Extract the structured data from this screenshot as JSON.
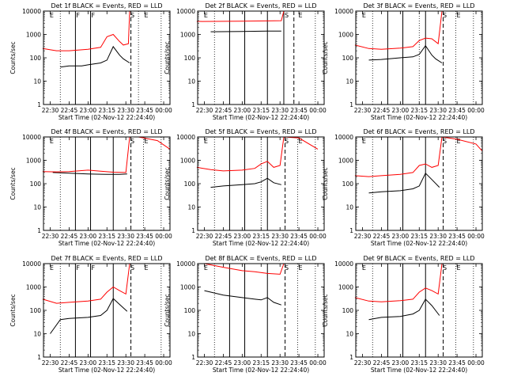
{
  "figure": {
    "background": "#ffffff",
    "events_color": "#000000",
    "lld_color": "#ff0000",
    "xlabel": "Start Time (02-Nov-12 22:24:40)",
    "ylabel": "Counts/sec",
    "x_ticks": [
      "22:30",
      "22:45",
      "23:00",
      "23:15",
      "23:30",
      "23:45",
      "00:00"
    ],
    "y_ticks": [
      "1",
      "10",
      "100",
      "1000",
      "10000"
    ]
  },
  "chart_data": [
    {
      "type": "line",
      "detector": "1f",
      "title": "Det 1f BLACK = Events, RED = LLD",
      "xlabel": "Start Time (02-Nov-12 22:24:40)",
      "ylabel": "Counts/sec",
      "yscale": "log",
      "xlim": [
        "22:24:40",
        "00:05:00"
      ],
      "ylim": [
        1,
        10000
      ],
      "markers": {
        "solid": [
          "22:50",
          "23:02"
        ],
        "dotted": [
          "22:38",
          "23:40",
          "23:58"
        ],
        "dashed": [
          "23:34"
        ],
        "letters": [
          {
            "text": "E",
            "t": "22:29"
          },
          {
            "text": "F",
            "t": "22:50"
          },
          {
            "text": "F",
            "t": "23:02"
          },
          {
            "text": "S",
            "t": "23:33"
          },
          {
            "text": "E",
            "t": "23:44"
          }
        ]
      },
      "series": [
        {
          "name": "Events",
          "color": "#000000",
          "x": [
            "22:38",
            "22:45",
            "22:55",
            "23:00",
            "23:10",
            "23:15",
            "23:20",
            "23:25",
            "23:28",
            "23:33"
          ],
          "values": [
            40,
            45,
            45,
            50,
            60,
            80,
            300,
            130,
            90,
            60
          ]
        },
        {
          "name": "LLD",
          "color": "#ff0000",
          "x": [
            "22:24",
            "22:35",
            "22:45",
            "23:00",
            "23:10",
            "23:15",
            "23:20",
            "23:25",
            "23:28",
            "23:32",
            "23:33"
          ],
          "values": [
            250,
            200,
            200,
            230,
            280,
            800,
            1000,
            500,
            350,
            400,
            10000
          ]
        }
      ]
    },
    {
      "type": "line",
      "detector": "2f",
      "title": "Det 2f BLACK = Events, RED = LLD",
      "xlabel": "Start Time (02-Nov-12 22:24:40)",
      "ylabel": "Counts/sec",
      "yscale": "log",
      "xlim": [
        "22:24:40",
        "00:05:00"
      ],
      "ylim": [
        1,
        10000
      ],
      "markers": {
        "solid": [
          "22:50",
          "23:02",
          "23:20",
          "23:33"
        ],
        "dotted": [
          "22:38",
          "23:58"
        ],
        "dashed": [
          "23:41"
        ],
        "letters": [
          {
            "text": "E",
            "t": "22:29"
          },
          {
            "text": "S",
            "t": "23:33"
          },
          {
            "text": "E",
            "t": "23:44"
          }
        ]
      },
      "series": [
        {
          "name": "Events",
          "color": "#000000",
          "x": [
            "22:35",
            "23:00",
            "23:20",
            "23:31"
          ],
          "values": [
            1300,
            1350,
            1400,
            1400
          ]
        },
        {
          "name": "LLD",
          "color": "#ff0000",
          "x": [
            "22:24",
            "23:00",
            "23:20",
            "23:31",
            "23:33"
          ],
          "values": [
            3600,
            3700,
            3800,
            3900,
            12000
          ]
        }
      ]
    },
    {
      "type": "line",
      "detector": "3f",
      "title": "Det 3f BLACK = Events, RED = LLD",
      "xlabel": "Start Time (02-Nov-12 22:24:40)",
      "ylabel": "Counts/sec",
      "yscale": "log",
      "xlim": [
        "22:24:40",
        "00:05:00"
      ],
      "ylim": [
        1,
        10000
      ],
      "markers": {
        "solid": [
          "22:50",
          "23:02",
          "23:20"
        ],
        "dotted": [
          "22:38",
          "23:15",
          "23:44",
          "23:58"
        ],
        "dashed": [
          "23:34"
        ],
        "letters": [
          {
            "text": "E",
            "t": "22:29"
          },
          {
            "text": "S",
            "t": "23:33"
          },
          {
            "text": "E",
            "t": "23:44"
          }
        ]
      },
      "series": [
        {
          "name": "Events",
          "color": "#000000",
          "x": [
            "22:35",
            "22:45",
            "23:00",
            "23:10",
            "23:15",
            "23:20",
            "23:25",
            "23:28",
            "23:33"
          ],
          "values": [
            80,
            85,
            100,
            110,
            140,
            330,
            130,
            90,
            60
          ]
        },
        {
          "name": "LLD",
          "color": "#ff0000",
          "x": [
            "22:24",
            "22:35",
            "22:45",
            "23:00",
            "23:10",
            "23:15",
            "23:20",
            "23:25",
            "23:30",
            "23:33"
          ],
          "values": [
            350,
            250,
            230,
            260,
            300,
            550,
            700,
            650,
            400,
            10000
          ]
        }
      ]
    },
    {
      "type": "line",
      "detector": "4f",
      "title": "Det 4f BLACK = Events, RED = LLD",
      "xlabel": "Start Time (02-Nov-12 22:24:40)",
      "ylabel": "Counts/sec",
      "yscale": "log",
      "xlim": [
        "22:24:40",
        "00:05:00"
      ],
      "ylim": [
        1,
        10000
      ],
      "markers": {
        "solid": [
          "22:50",
          "23:02",
          "23:20"
        ],
        "dotted": [
          "22:38",
          "23:44",
          "23:58"
        ],
        "dashed": [
          "23:34"
        ],
        "letters": [
          {
            "text": "E",
            "t": "22:29"
          },
          {
            "text": "S",
            "t": "23:33"
          },
          {
            "text": "E",
            "t": "23:44"
          }
        ]
      },
      "series": [
        {
          "name": "Events",
          "color": "#000000",
          "x": [
            "22:32",
            "22:45",
            "23:00",
            "23:15",
            "23:25",
            "23:31"
          ],
          "values": [
            300,
            280,
            260,
            250,
            250,
            260
          ]
        },
        {
          "name": "LLD",
          "color": "#ff0000",
          "x": [
            "22:24",
            "22:35",
            "22:45",
            "23:00",
            "23:10",
            "23:20",
            "23:30",
            "23:33",
            "23:40",
            "23:55",
            "00:05"
          ],
          "values": [
            330,
            320,
            330,
            380,
            340,
            310,
            300,
            10000,
            10000,
            7000,
            3000
          ]
        }
      ]
    },
    {
      "type": "line",
      "detector": "5f",
      "title": "Det 5f BLACK = Events, RED = LLD",
      "xlabel": "Start Time (02-Nov-12 22:24:40)",
      "ylabel": "Counts/sec",
      "yscale": "log",
      "xlim": [
        "22:24:40",
        "00:05:00"
      ],
      "ylim": [
        1,
        10000
      ],
      "markers": {
        "solid": [
          "22:50",
          "23:02",
          "23:20"
        ],
        "dotted": [
          "22:38",
          "23:15",
          "23:44",
          "23:58"
        ],
        "dashed": [
          "23:34"
        ],
        "letters": [
          {
            "text": "E",
            "t": "22:29"
          },
          {
            "text": "S",
            "t": "23:33"
          },
          {
            "text": "E",
            "t": "23:44"
          }
        ]
      },
      "series": [
        {
          "name": "Events",
          "color": "#000000",
          "x": [
            "22:35",
            "22:45",
            "23:00",
            "23:10",
            "23:15",
            "23:20",
            "23:25",
            "23:31"
          ],
          "values": [
            70,
            80,
            90,
            100,
            120,
            170,
            110,
            90
          ]
        },
        {
          "name": "LLD",
          "color": "#ff0000",
          "x": [
            "22:24",
            "22:35",
            "22:45",
            "23:00",
            "23:10",
            "23:15",
            "23:20",
            "23:25",
            "23:30",
            "23:33",
            "23:45",
            "00:00"
          ],
          "values": [
            500,
            400,
            350,
            380,
            450,
            700,
            900,
            500,
            600,
            10000,
            9000,
            3000
          ]
        }
      ]
    },
    {
      "type": "line",
      "detector": "6f",
      "title": "Det 6f BLACK = Events, RED = LLD",
      "xlabel": "Start Time (02-Nov-12 22:24:40)",
      "ylabel": "Counts/sec",
      "yscale": "log",
      "xlim": [
        "22:24:40",
        "00:05:00"
      ],
      "ylim": [
        1,
        10000
      ],
      "markers": {
        "solid": [
          "22:50",
          "23:02",
          "23:20"
        ],
        "dotted": [
          "22:38",
          "23:44",
          "23:58"
        ],
        "dashed": [
          "23:34"
        ],
        "letters": [
          {
            "text": "E",
            "t": "22:29"
          },
          {
            "text": "S",
            "t": "23:33"
          },
          {
            "text": "E",
            "t": "23:44"
          }
        ]
      },
      "series": [
        {
          "name": "Events",
          "color": "#000000",
          "x": [
            "22:35",
            "22:45",
            "23:00",
            "23:10",
            "23:15",
            "23:20",
            "23:25",
            "23:31"
          ],
          "values": [
            40,
            45,
            50,
            60,
            80,
            280,
            150,
            70
          ]
        },
        {
          "name": "LLD",
          "color": "#ff0000",
          "x": [
            "22:24",
            "22:35",
            "22:45",
            "23:00",
            "23:10",
            "23:15",
            "23:20",
            "23:25",
            "23:30",
            "23:33",
            "23:45",
            "00:00",
            "00:05"
          ],
          "values": [
            220,
            200,
            220,
            250,
            300,
            600,
            700,
            500,
            600,
            10000,
            8000,
            5000,
            2500
          ]
        }
      ]
    },
    {
      "type": "line",
      "detector": "7f",
      "title": "Det 7f BLACK = Events, RED = LLD",
      "xlabel": "Start Time (02-Nov-12 22:24:40)",
      "ylabel": "Counts/sec",
      "yscale": "log",
      "xlim": [
        "22:24:40",
        "00:05:00"
      ],
      "ylim": [
        1,
        10000
      ],
      "markers": {
        "solid": [
          "22:50",
          "23:02",
          "23:20"
        ],
        "dotted": [
          "22:38",
          "23:58"
        ],
        "dashed": [
          "23:34"
        ],
        "letters": [
          {
            "text": "E",
            "t": "22:29"
          },
          {
            "text": "F",
            "t": "22:50"
          },
          {
            "text": "F",
            "t": "23:02"
          },
          {
            "text": "S",
            "t": "23:33"
          },
          {
            "text": "E",
            "t": "23:44"
          }
        ]
      },
      "series": [
        {
          "name": "Events",
          "color": "#000000",
          "x": [
            "22:30",
            "22:38",
            "22:45",
            "23:00",
            "23:10",
            "23:15",
            "23:20",
            "23:25",
            "23:31"
          ],
          "values": [
            10,
            40,
            45,
            50,
            60,
            100,
            320,
            180,
            90
          ]
        },
        {
          "name": "LLD",
          "color": "#ff0000",
          "x": [
            "22:24",
            "22:35",
            "22:45",
            "23:00",
            "23:10",
            "23:15",
            "23:20",
            "23:25",
            "23:30",
            "23:33"
          ],
          "values": [
            300,
            200,
            220,
            250,
            300,
            600,
            1000,
            700,
            500,
            10000
          ]
        }
      ]
    },
    {
      "type": "line",
      "detector": "8f",
      "title": "Det 8f BLACK = Events, RED = LLD",
      "xlabel": "Start Time (02-Nov-12 22:24:40)",
      "ylabel": "Counts/sec",
      "yscale": "log",
      "xlim": [
        "22:24:40",
        "00:05:00"
      ],
      "ylim": [
        1,
        10000
      ],
      "markers": {
        "solid": [
          "22:50",
          "23:02",
          "23:20"
        ],
        "dotted": [
          "22:38",
          "23:44",
          "23:58"
        ],
        "dashed": [
          "23:34"
        ],
        "letters": [
          {
            "text": "E",
            "t": "22:29"
          },
          {
            "text": "S",
            "t": "23:33"
          },
          {
            "text": "E",
            "t": "23:44"
          }
        ]
      },
      "series": [
        {
          "name": "Events",
          "color": "#000000",
          "x": [
            "22:30",
            "22:35",
            "22:45",
            "23:00",
            "23:10",
            "23:15",
            "23:20",
            "23:25",
            "23:31"
          ],
          "values": [
            700,
            600,
            450,
            350,
            300,
            280,
            350,
            220,
            170
          ]
        },
        {
          "name": "LLD",
          "color": "#ff0000",
          "x": [
            "22:30",
            "22:45",
            "23:00",
            "23:10",
            "23:20",
            "23:30",
            "23:33"
          ],
          "values": [
            10000,
            7000,
            5000,
            4500,
            3800,
            3500,
            10000
          ]
        }
      ]
    },
    {
      "type": "line",
      "detector": "9f",
      "title": "Det 9f BLACK = Events, RED = LLD",
      "xlabel": "Start Time (02-Nov-12 22:24:40)",
      "ylabel": "Counts/sec",
      "yscale": "log",
      "xlim": [
        "22:24:40",
        "00:05:00"
      ],
      "ylim": [
        1,
        10000
      ],
      "markers": {
        "solid": [
          "22:50",
          "23:02",
          "23:20"
        ],
        "dotted": [
          "22:38",
          "23:44",
          "23:58"
        ],
        "dashed": [
          "23:34"
        ],
        "letters": [
          {
            "text": "E",
            "t": "22:29"
          },
          {
            "text": "S",
            "t": "23:33"
          },
          {
            "text": "E",
            "t": "23:44"
          }
        ]
      },
      "series": [
        {
          "name": "Events",
          "color": "#000000",
          "x": [
            "22:35",
            "22:45",
            "23:00",
            "23:10",
            "23:15",
            "23:20",
            "23:25",
            "23:31"
          ],
          "values": [
            40,
            50,
            55,
            70,
            100,
            300,
            160,
            60
          ]
        },
        {
          "name": "LLD",
          "color": "#ff0000",
          "x": [
            "22:24",
            "22:35",
            "22:45",
            "23:00",
            "23:10",
            "23:15",
            "23:20",
            "23:25",
            "23:30",
            "23:33"
          ],
          "values": [
            350,
            250,
            230,
            260,
            300,
            600,
            900,
            700,
            500,
            10000
          ]
        }
      ]
    }
  ]
}
